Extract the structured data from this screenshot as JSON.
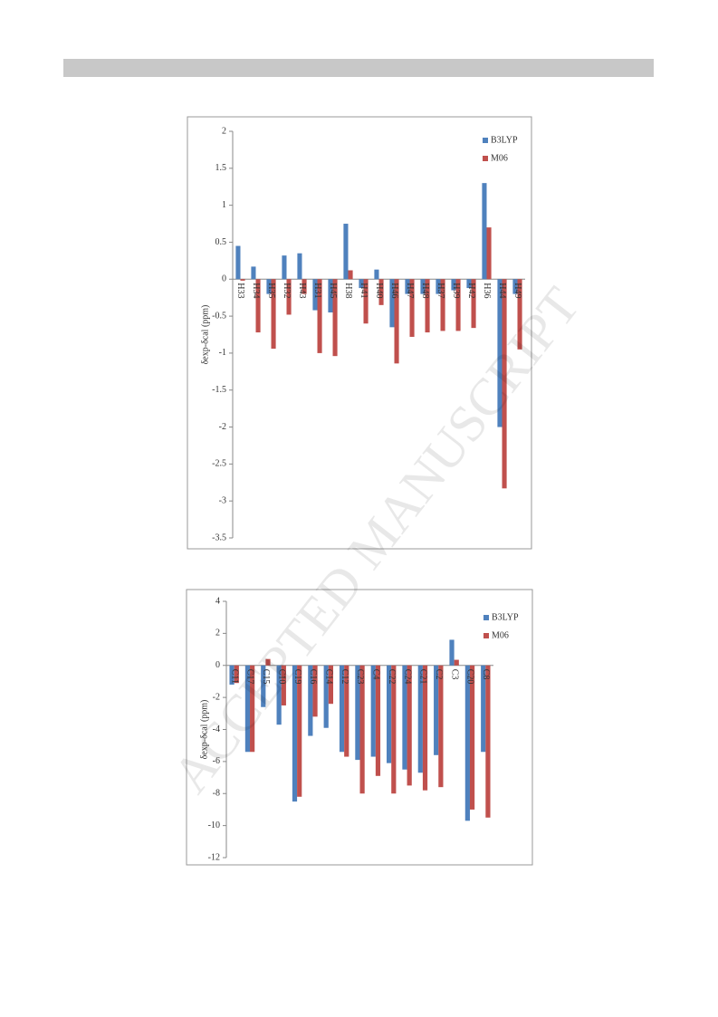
{
  "watermark": "ACCEPTED MANUSCRIPT",
  "chart_data": [
    {
      "type": "bar",
      "ylabel": "δexp-δcal  (ppm)",
      "categories": [
        "H33",
        "H34",
        "H35",
        "H32",
        "H43",
        "H31",
        "H45",
        "H38",
        "H41",
        "H40",
        "H46",
        "H47",
        "H48",
        "H37",
        "H39",
        "H42",
        "H36",
        "H44",
        "H49"
      ],
      "series": [
        {
          "name": "B3LYP",
          "color": "#4f81bd",
          "values": [
            0.45,
            0.17,
            -0.2,
            0.32,
            0.35,
            -0.42,
            -0.45,
            0.75,
            -0.12,
            0.13,
            -0.65,
            -0.2,
            -0.2,
            -0.2,
            -0.15,
            -0.12,
            1.3,
            -2.0,
            -0.2
          ]
        },
        {
          "name": "M06",
          "color": "#c0504d",
          "values": [
            -0.02,
            -0.72,
            -0.94,
            -0.48,
            -0.2,
            -1.0,
            -1.04,
            0.12,
            -0.6,
            -0.35,
            -1.14,
            -0.78,
            -0.72,
            -0.7,
            -0.7,
            -0.66,
            0.7,
            -2.83,
            -0.95
          ]
        }
      ],
      "ylim": [
        -3.5,
        2
      ],
      "yticks": [
        -3.5,
        -3,
        -2.5,
        -2,
        -1.5,
        -1,
        -0.5,
        0,
        0.5,
        1,
        1.5,
        2
      ],
      "legend": "top-right"
    },
    {
      "type": "bar",
      "ylabel": "δexp-δcal  (ppm)",
      "categories": [
        "C11",
        "C17",
        "C15",
        "C10",
        "C19",
        "C16",
        "C14",
        "C12",
        "C23",
        "C4",
        "C22",
        "C24",
        "C21",
        "C2",
        "C3",
        "C20",
        "C8"
      ],
      "series": [
        {
          "name": "B3LYP",
          "color": "#4f81bd",
          "values": [
            -1.2,
            -5.4,
            -2.6,
            -3.7,
            -8.5,
            -4.4,
            -3.9,
            -5.4,
            -5.9,
            -5.7,
            -6.1,
            -6.5,
            -6.7,
            -5.6,
            1.6,
            -9.7,
            -5.4
          ]
        },
        {
          "name": "M06",
          "color": "#c0504d",
          "values": [
            -1.1,
            -5.4,
            0.4,
            -2.5,
            -8.2,
            -3.2,
            -2.4,
            -5.7,
            -8.0,
            -6.9,
            -8.0,
            -7.5,
            -7.8,
            -7.6,
            0.35,
            -9.0,
            -9.5
          ]
        }
      ],
      "ylim": [
        -12,
        4
      ],
      "yticks": [
        -12,
        -10,
        -8,
        -6,
        -4,
        -2,
        0,
        2,
        4
      ],
      "legend": "top-right"
    }
  ]
}
